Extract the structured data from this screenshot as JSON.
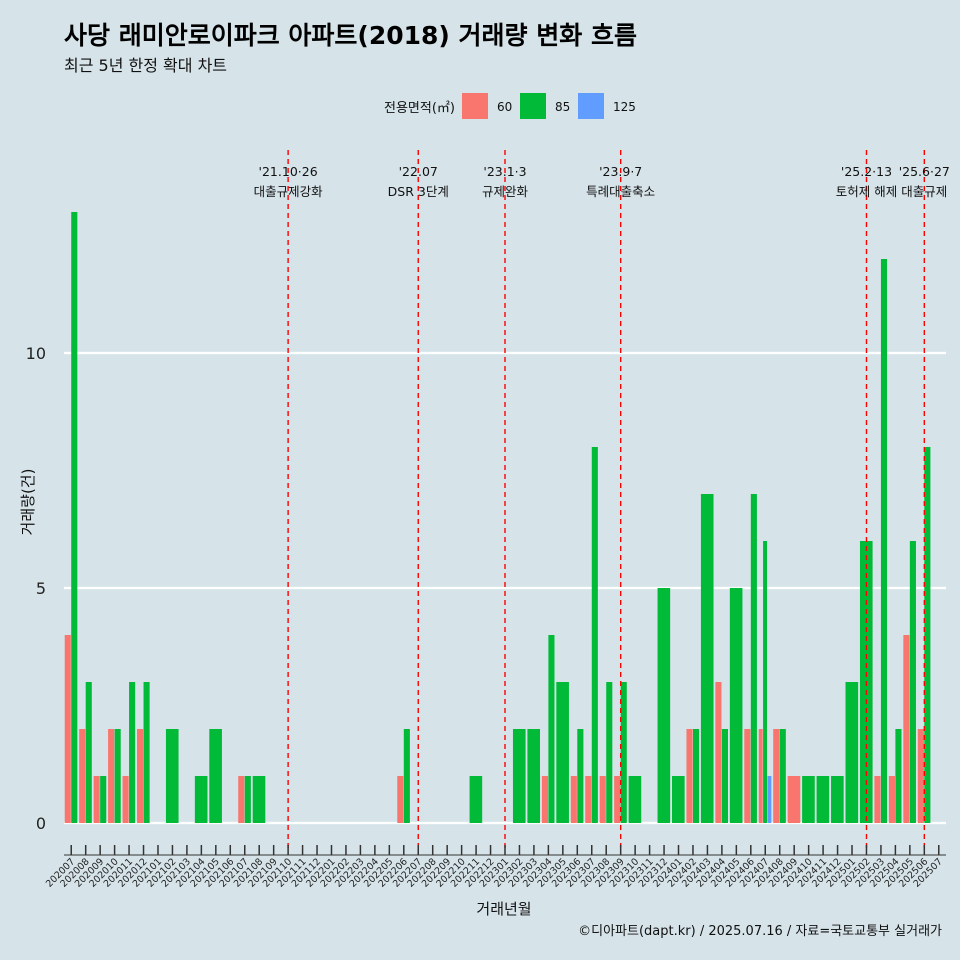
{
  "header": {
    "title": "사당 래미안로이파크 아파트(2018) 거래량 변화 흐름",
    "subtitle": "최근 5년 한정 확대 차트"
  },
  "footer": {
    "caption": "©디아파트(dapt.kr) / 2025.07.16 / 자료=국토교통부 실거래가"
  },
  "colors": {
    "background": "#d6e4ea",
    "grid": "#ffffff",
    "event_line": "#ff0000",
    "series": {
      "60": "#f8766d",
      "85": "#00ba38",
      "125": "#619cff"
    }
  },
  "chart_data": {
    "type": "bar",
    "xlabel": "거래년월",
    "ylabel": "거래량(건)",
    "ylim": [
      -0.6,
      14.5
    ],
    "yticks": [
      0,
      5,
      10
    ],
    "grid": true,
    "legend": {
      "title": "전용면적(㎡)",
      "placement": "top",
      "entries": [
        "60",
        "85",
        "125"
      ]
    },
    "categories": [
      "202007",
      "202008",
      "202009",
      "202010",
      "202011",
      "202012",
      "202101",
      "202102",
      "202103",
      "202104",
      "202105",
      "202106",
      "202107",
      "202108",
      "202109",
      "202110",
      "202111",
      "202112",
      "202201",
      "202202",
      "202203",
      "202204",
      "202205",
      "202206",
      "202207",
      "202208",
      "202209",
      "202210",
      "202211",
      "202212",
      "202301",
      "202302",
      "202303",
      "202304",
      "202305",
      "202306",
      "202307",
      "202308",
      "202309",
      "202310",
      "202311",
      "202312",
      "202401",
      "202402",
      "202403",
      "202404",
      "202405",
      "202406",
      "202407",
      "202408",
      "202409",
      "202410",
      "202411",
      "202412",
      "202501",
      "202502",
      "202503",
      "202504",
      "202505",
      "202506",
      "202507"
    ],
    "series": [
      {
        "name": "60",
        "values": [
          4,
          2,
          1,
          2,
          1,
          2,
          0,
          0,
          0,
          0,
          0,
          0,
          1,
          0,
          0,
          0,
          0,
          0,
          0,
          0,
          0,
          0,
          0,
          1,
          0,
          0,
          0,
          0,
          0,
          0,
          0,
          0,
          0,
          1,
          0,
          1,
          1,
          1,
          1,
          0,
          0,
          0,
          0,
          2,
          0,
          3,
          0,
          2,
          2,
          2,
          1,
          0,
          0,
          0,
          0,
          0,
          1,
          1,
          4,
          2,
          0
        ]
      },
      {
        "name": "85",
        "values": [
          13,
          3,
          1,
          2,
          3,
          3,
          0,
          2,
          0,
          1,
          2,
          0,
          1,
          1,
          0,
          0,
          0,
          0,
          0,
          0,
          0,
          0,
          0,
          2,
          0,
          0,
          0,
          0,
          1,
          0,
          0,
          2,
          2,
          4,
          3,
          2,
          8,
          3,
          3,
          1,
          0,
          5,
          1,
          2,
          7,
          2,
          5,
          7,
          6,
          2,
          0,
          1,
          1,
          1,
          3,
          6,
          12,
          2,
          6,
          8,
          0
        ]
      },
      {
        "name": "125",
        "values": [
          0,
          0,
          0,
          0,
          0,
          0,
          0,
          0,
          0,
          0,
          0,
          0,
          0,
          0,
          0,
          0,
          0,
          0,
          0,
          0,
          0,
          0,
          0,
          0,
          0,
          0,
          0,
          0,
          0,
          0,
          0,
          0,
          0,
          0,
          0,
          0,
          0,
          0,
          0,
          0,
          0,
          0,
          0,
          0,
          0,
          0,
          0,
          0,
          1,
          0,
          0,
          0,
          0,
          0,
          0,
          0,
          0,
          0,
          0,
          0,
          0
        ]
      }
    ],
    "events": [
      {
        "date": "'21.10·26",
        "label": "대출규제강화",
        "category": "202110"
      },
      {
        "date": "'22.07",
        "label": "DSR 3단계",
        "category": "202207"
      },
      {
        "date": "'23.1·3",
        "label": "규제완화",
        "category": "202301"
      },
      {
        "date": "'23.9·7",
        "label": "특례대출축소",
        "category": "202309"
      },
      {
        "date": "'25.2·13",
        "label": "토허제 해제",
        "category": "202502"
      },
      {
        "date": "'25.6·27",
        "label": "대출규제",
        "category": "202506"
      }
    ]
  }
}
